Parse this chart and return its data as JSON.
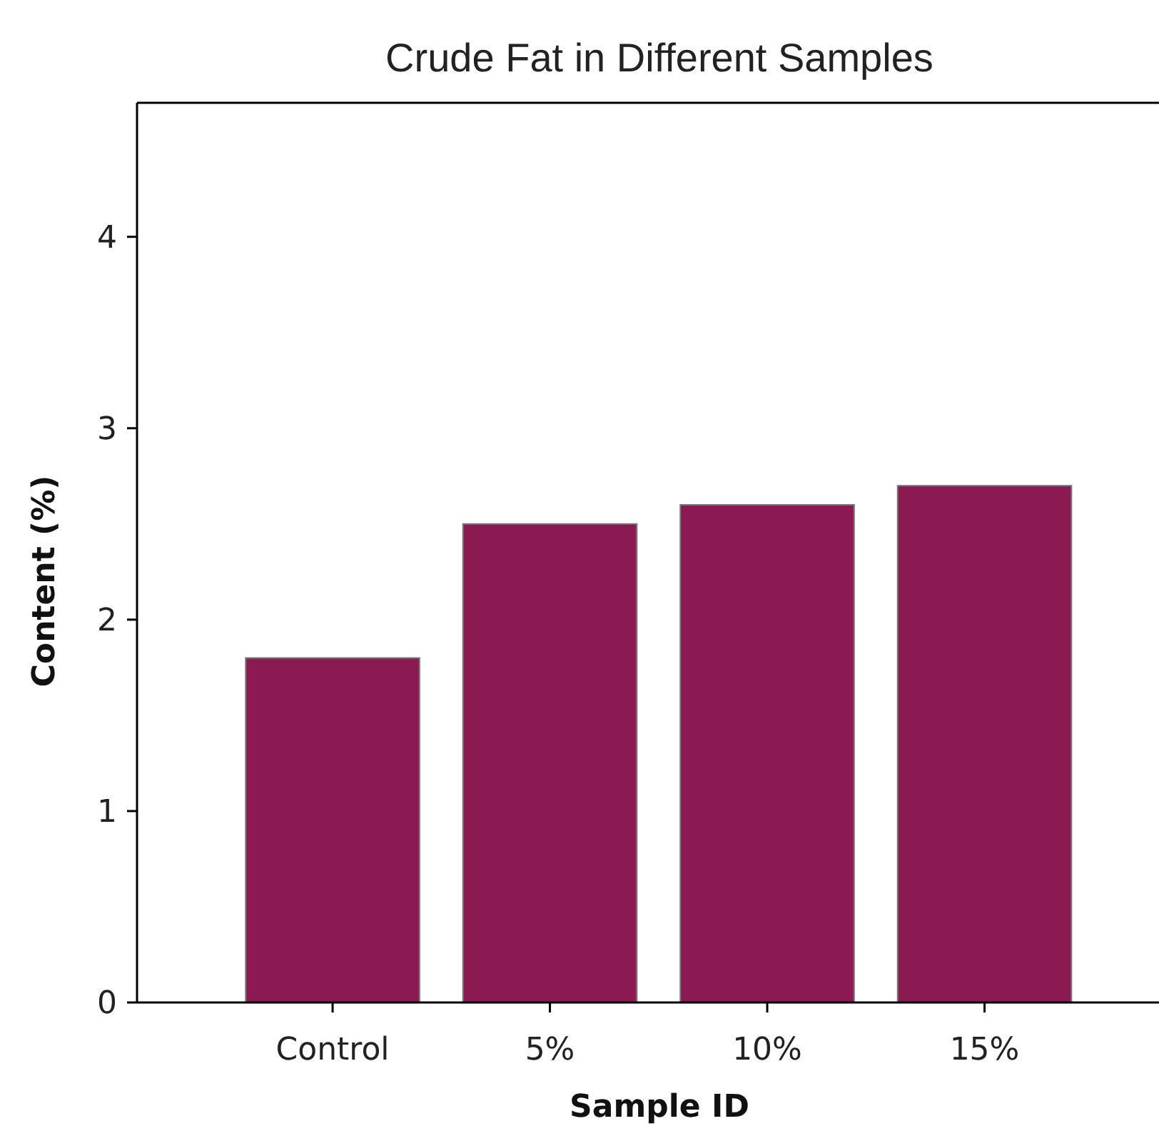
{
  "chart_data": {
    "type": "bar",
    "title": "Crude Fat in Different Samples",
    "xlabel": "Sample ID",
    "ylabel": "Content (%)",
    "categories": [
      "Control",
      "5%",
      "10%",
      "15%"
    ],
    "values": [
      1.8,
      2.5,
      2.6,
      2.7
    ],
    "color": "#8b1a52",
    "ylim": [
      0,
      4.7
    ],
    "yticks": [
      0,
      1,
      2,
      3,
      4
    ],
    "grid": false
  }
}
